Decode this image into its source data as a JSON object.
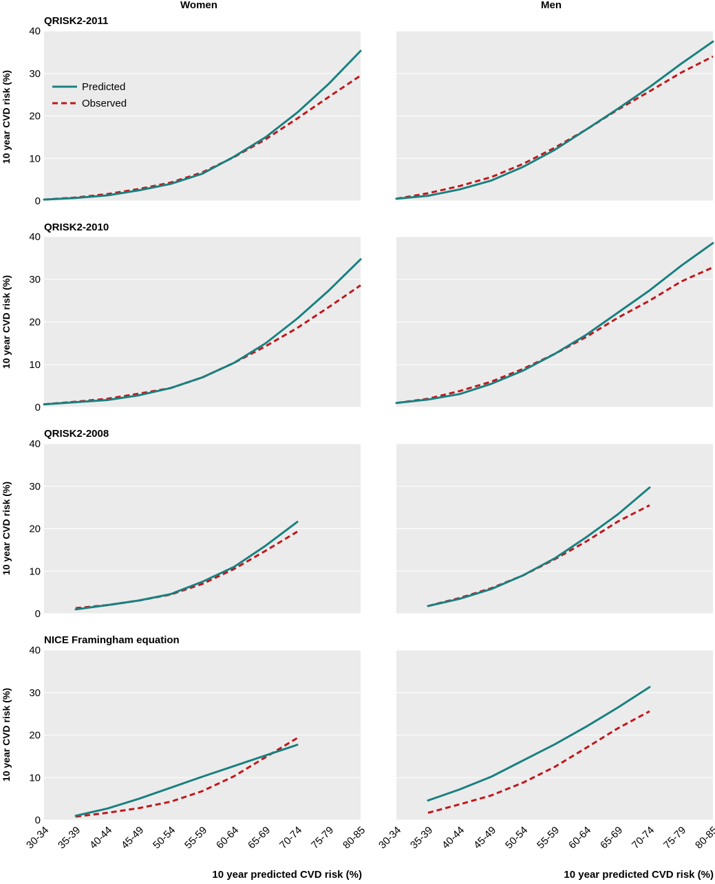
{
  "column_titles": [
    "Women",
    "Men"
  ],
  "row_titles": [
    "QRISK2-2011",
    "QRISK2-2010",
    "QRISK2-2008",
    "NICE Framingham equation"
  ],
  "legend": [
    {
      "label": "Predicted",
      "color": "#1a8080",
      "style": "solid"
    },
    {
      "label": "Observed",
      "color": "#c0171b",
      "style": "dashed"
    }
  ],
  "colors": {
    "panel_background": "#ebebeb",
    "grid": "#ffffff",
    "predicted": "#1a8080",
    "observed": "#c0171b"
  },
  "chart_data": {
    "type": "line",
    "ylabel": "10 year CVD risk (%)",
    "xlabel": "10 year predicted CVD risk (%)",
    "categories": [
      "30-34",
      "35-39",
      "40-44",
      "45-49",
      "50-54",
      "55-59",
      "60-64",
      "65-69",
      "70-74",
      "75-79",
      "80-85"
    ],
    "yticks": [
      0,
      10,
      20,
      30,
      40
    ],
    "ylim": [
      0,
      40
    ],
    "grid": true,
    "legend_position": "top-left",
    "panels": [
      {
        "row": "QRISK2-2011",
        "column": "Women",
        "series": [
          {
            "name": "Predicted",
            "values": [
              0.3,
              0.7,
              1.3,
              2.5,
              4.0,
              6.4,
              10.4,
              15.0,
              20.8,
              27.6,
              35.3
            ]
          },
          {
            "name": "Observed",
            "values": [
              0.3,
              0.8,
              1.6,
              2.8,
              4.3,
              6.7,
              10.3,
              14.5,
              19.4,
              24.5,
              29.5
            ]
          }
        ]
      },
      {
        "row": "QRISK2-2011",
        "column": "Men",
        "series": [
          {
            "name": "Predicted",
            "values": [
              0.5,
              1.2,
              2.7,
              4.8,
              8.0,
              12.0,
              16.8,
              21.7,
              26.8,
              32.3,
              37.5
            ]
          },
          {
            "name": "Observed",
            "values": [
              0.5,
              1.8,
              3.5,
              5.6,
              8.7,
              12.5,
              16.8,
              21.5,
              25.8,
              30.2,
              34.0
            ]
          }
        ]
      },
      {
        "row": "QRISK2-2010",
        "column": "Women",
        "series": [
          {
            "name": "Predicted",
            "values": [
              0.7,
              1.2,
              1.7,
              2.8,
              4.5,
              7.0,
              10.4,
              15.0,
              20.8,
              27.4,
              34.7
            ]
          },
          {
            "name": "Observed",
            "values": [
              0.7,
              1.3,
              2.0,
              3.2,
              4.5,
              7.0,
              10.4,
              14.3,
              18.6,
              23.5,
              28.6
            ]
          }
        ]
      },
      {
        "row": "QRISK2-2010",
        "column": "Men",
        "series": [
          {
            "name": "Predicted",
            "values": [
              1.0,
              1.8,
              3.1,
              5.5,
              8.6,
              12.5,
              17.0,
              22.2,
              27.4,
              33.2,
              38.5
            ]
          },
          {
            "name": "Observed",
            "values": [
              1.0,
              2.0,
              3.8,
              6.0,
              9.0,
              12.5,
              16.5,
              21.0,
              25.0,
              29.5,
              32.8
            ]
          }
        ]
      },
      {
        "row": "QRISK2-2008",
        "column": "Women",
        "series": [
          {
            "name": "Predicted",
            "values": [
              null,
              1.0,
              2.0,
              3.1,
              4.6,
              7.5,
              11.0,
              16.0,
              21.6,
              null,
              null
            ]
          },
          {
            "name": "Observed",
            "values": [
              null,
              1.3,
              2.0,
              3.1,
              4.5,
              7.0,
              10.5,
              14.8,
              19.3,
              null,
              null
            ]
          }
        ]
      },
      {
        "row": "QRISK2-2008",
        "column": "Men",
        "series": [
          {
            "name": "Predicted",
            "values": [
              null,
              1.8,
              3.5,
              5.8,
              9.0,
              13.0,
              18.0,
              23.4,
              29.7,
              null,
              null
            ]
          },
          {
            "name": "Observed",
            "values": [
              null,
              1.8,
              3.7,
              6.0,
              9.0,
              12.8,
              17.0,
              21.7,
              25.5,
              null,
              null
            ]
          }
        ]
      },
      {
        "row": "NICE Framingham equation",
        "column": "Women",
        "series": [
          {
            "name": "Predicted",
            "values": [
              null,
              1.0,
              2.7,
              5.0,
              7.6,
              10.2,
              12.7,
              15.2,
              17.7,
              null,
              null
            ]
          },
          {
            "name": "Observed",
            "values": [
              null,
              0.8,
              1.7,
              2.8,
              4.3,
              6.8,
              10.3,
              14.8,
              19.3,
              null,
              null
            ]
          }
        ]
      },
      {
        "row": "NICE Framingham equation",
        "column": "Men",
        "series": [
          {
            "name": "Predicted",
            "values": [
              null,
              4.6,
              7.2,
              10.2,
              14.0,
              17.8,
              22.0,
              26.5,
              31.3,
              null,
              null
            ]
          },
          {
            "name": "Observed",
            "values": [
              null,
              1.7,
              3.7,
              5.8,
              8.8,
              12.5,
              17.0,
              21.6,
              25.6,
              null,
              null
            ]
          }
        ]
      }
    ]
  }
}
